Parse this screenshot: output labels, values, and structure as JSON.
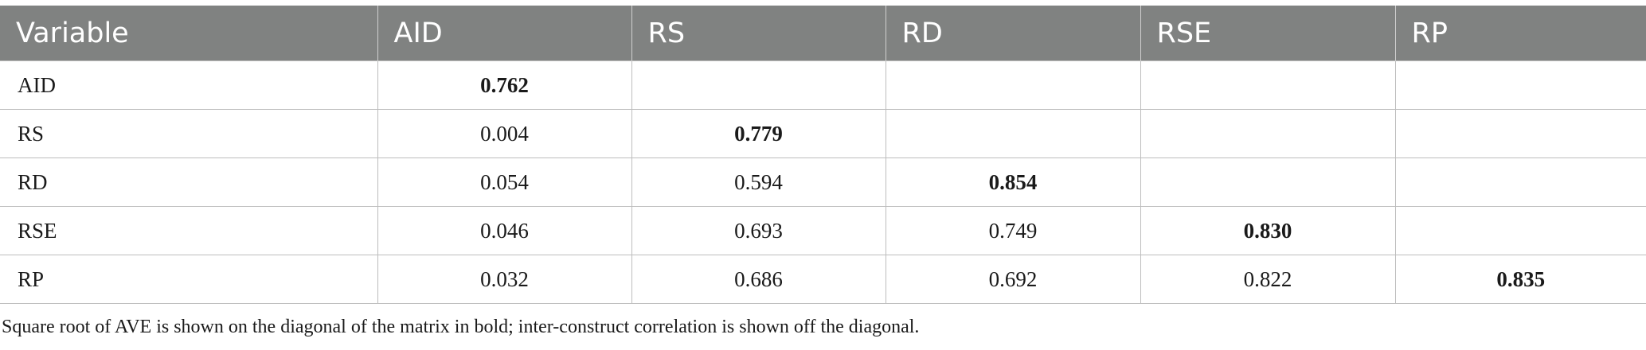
{
  "table": {
    "headers": [
      "Variable",
      "AID",
      "RS",
      "RD",
      "RSE",
      "RP"
    ],
    "rows": [
      {
        "label": "AID",
        "cells": [
          "0.762",
          "",
          "",
          "",
          ""
        ]
      },
      {
        "label": "RS",
        "cells": [
          "0.004",
          "0.779",
          "",
          "",
          ""
        ]
      },
      {
        "label": "RD",
        "cells": [
          "0.054",
          "0.594",
          "0.854",
          "",
          ""
        ]
      },
      {
        "label": "RSE",
        "cells": [
          "0.046",
          "0.693",
          "0.749",
          "0.830",
          ""
        ]
      },
      {
        "label": "RP",
        "cells": [
          "0.032",
          "0.686",
          "0.692",
          "0.822",
          "0.835"
        ]
      }
    ]
  },
  "footnote": "Square root of AVE is shown on the diagonal of the matrix in bold; inter-construct correlation is shown off the diagonal.",
  "colors": {
    "header_bg": "#808281",
    "header_text": "#ffffff",
    "grid": "#bdbdbd"
  }
}
